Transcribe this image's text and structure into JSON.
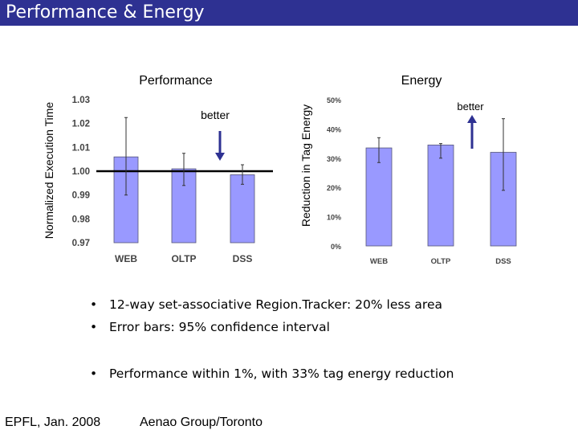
{
  "slide": {
    "title": "Performance & Energy",
    "footer_left": "EPFL, Jan. 2008",
    "footer_right": "Aenao Group/Toronto",
    "bullet_marker": "•",
    "bullets": [
      "12-way set-associative Region.Tracker: 20% less area",
      "Error bars: 95% confidence interval",
      "Performance within 1%, with 33% tag energy reduction"
    ]
  },
  "colors": {
    "title_bar": "#2e3192",
    "bar_fill": "#9999ff",
    "arrow": "#2e3192"
  },
  "chart_data": [
    {
      "type": "bar",
      "title": "Performance",
      "ylabel": "Normalized Execution Time",
      "xlabel": "",
      "categories": [
        "WEB",
        "OLTP",
        "DSS"
      ],
      "values": [
        1.006,
        1.001,
        0.9985
      ],
      "error_low": [
        0.99,
        0.994,
        0.9945
      ],
      "error_high": [
        1.0225,
        1.0075,
        1.0027
      ],
      "ylim": [
        0.97,
        1.03
      ],
      "yticks": [
        "0.97",
        "0.98",
        "0.99",
        "1.00",
        "1.01",
        "1.02",
        "1.03"
      ],
      "reference_line": 1.0,
      "annotation": "better",
      "annotation_arrow": "down",
      "grid": false
    },
    {
      "type": "bar",
      "title": "Energy",
      "ylabel": "Reduction in Tag Energy",
      "xlabel": "",
      "categories": [
        "WEB",
        "OLTP",
        "DSS"
      ],
      "values": [
        33.5,
        34.5,
        32.0
      ],
      "error_low": [
        28.5,
        30.0,
        19.0
      ],
      "error_high": [
        37.0,
        35.0,
        43.5
      ],
      "ylim": [
        0,
        50
      ],
      "yticks": [
        "0%",
        "10%",
        "20%",
        "30%",
        "40%",
        "50%"
      ],
      "annotation": "better",
      "annotation_arrow": "up",
      "grid": false
    }
  ]
}
